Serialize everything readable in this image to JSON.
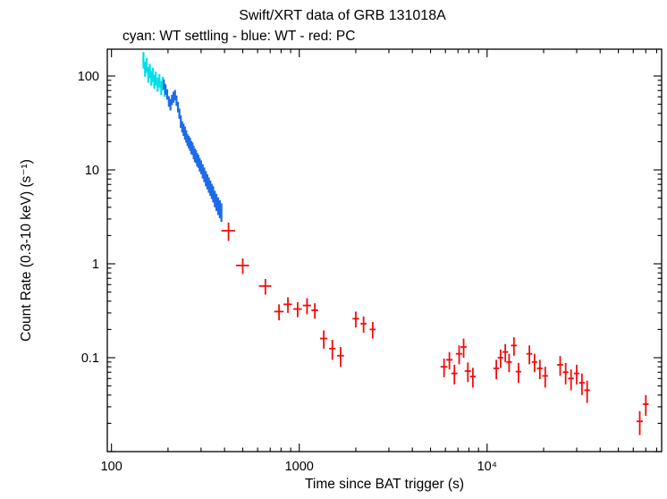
{
  "page": {
    "background": "#ffffff"
  },
  "chart_data": {
    "type": "scatter",
    "title": "Swift/XRT data of GRB 131018A",
    "subtitle": "cyan: WT settling - blue: WT - red: PC",
    "xlabel": "Time since BAT trigger (s)",
    "ylabel": "Count Rate (0.3-10 keV) (s⁻¹)",
    "xscale": "log",
    "yscale": "log",
    "xlim": [
      95,
      85000
    ],
    "ylim": [
      0.01,
      193
    ],
    "grid": false,
    "frame": true,
    "x_ticks": [
      {
        "value": 100,
        "label": "100"
      },
      {
        "value": 1000,
        "label": "1000"
      },
      {
        "value": 10000,
        "label": "10⁴"
      }
    ],
    "y_ticks": [
      {
        "value": 0.1,
        "label": "0.1"
      },
      {
        "value": 1,
        "label": "1"
      },
      {
        "value": 10,
        "label": "10"
      },
      {
        "value": 100,
        "label": "100"
      }
    ],
    "series": [
      {
        "name": "WT settling",
        "mode": "error-bars",
        "color": "#00dfe8",
        "stroke_width": 2.2,
        "points": [
          [
            148,
            150,
            2,
            30
          ],
          [
            151,
            120,
            2,
            22
          ],
          [
            154,
            132,
            2,
            24
          ],
          [
            157,
            105,
            2,
            20
          ],
          [
            160,
            115,
            2,
            20
          ],
          [
            163,
            96,
            2,
            17
          ],
          [
            166,
            104,
            2,
            18
          ],
          [
            169,
            88,
            2,
            15
          ],
          [
            172,
            95,
            2,
            16
          ],
          [
            176,
            82,
            2,
            14
          ],
          [
            180,
            90,
            2,
            15
          ],
          [
            184,
            76,
            2,
            13
          ],
          [
            188,
            84,
            2,
            14
          ],
          [
            192,
            72,
            2,
            12
          ]
        ]
      },
      {
        "name": "WT",
        "mode": "error-bars",
        "color": "#1e6be8",
        "stroke_width": 2.2,
        "points": [
          [
            190,
            82,
            2,
            10
          ],
          [
            194,
            72,
            2,
            9
          ],
          [
            198,
            64,
            2,
            8
          ],
          [
            202,
            54,
            2,
            7
          ],
          [
            206,
            50,
            2,
            7
          ],
          [
            210,
            56,
            2,
            7
          ],
          [
            214,
            60,
            2,
            8
          ],
          [
            218,
            63,
            2,
            8
          ],
          [
            222,
            55,
            2,
            7
          ],
          [
            226,
            47,
            2,
            6
          ],
          [
            230,
            40,
            2,
            5
          ],
          [
            234,
            33,
            2,
            5
          ],
          [
            238,
            29,
            2,
            4
          ],
          [
            242,
            27,
            2,
            4
          ],
          [
            246,
            25,
            2,
            4
          ],
          [
            250,
            23,
            2,
            3.5
          ],
          [
            254,
            21,
            2,
            3
          ],
          [
            258,
            20,
            2,
            3
          ],
          [
            262,
            19,
            2,
            3
          ],
          [
            266,
            17.5,
            2,
            2.8
          ],
          [
            270,
            17,
            2,
            2.6
          ],
          [
            274,
            15.5,
            2,
            2.5
          ],
          [
            278,
            14.5,
            2,
            2.4
          ],
          [
            282,
            14,
            2,
            2.2
          ],
          [
            286,
            13,
            2,
            2.1
          ],
          [
            290,
            12.5,
            2,
            2
          ],
          [
            295,
            11.5,
            2,
            1.9
          ],
          [
            300,
            10.8,
            2,
            1.8
          ],
          [
            306,
            9.8,
            2,
            1.7
          ],
          [
            312,
            9.0,
            3,
            1.6
          ],
          [
            318,
            8.2,
            3,
            1.5
          ],
          [
            324,
            7.6,
            3,
            1.4
          ],
          [
            330,
            7.0,
            3,
            1.3
          ],
          [
            336,
            6.5,
            3,
            1.2
          ],
          [
            342,
            6.0,
            3,
            1.1
          ],
          [
            348,
            5.6,
            3,
            1.1
          ],
          [
            355,
            5.0,
            3,
            1.0
          ],
          [
            362,
            4.6,
            3,
            0.95
          ],
          [
            370,
            4.2,
            4,
            0.9
          ],
          [
            378,
            3.9,
            4,
            0.85
          ],
          [
            385,
            3.6,
            4,
            0.8
          ]
        ]
      },
      {
        "name": "PC",
        "mode": "error-bars",
        "color": "#f20c0c",
        "stroke_width": 1.8,
        "points": [
          [
            420,
            2.25,
            35,
            0.5
          ],
          [
            500,
            0.96,
            40,
            0.18
          ],
          [
            660,
            0.58,
            50,
            0.11
          ],
          [
            780,
            0.31,
            45,
            0.06
          ],
          [
            870,
            0.37,
            45,
            0.07
          ],
          [
            980,
            0.33,
            50,
            0.06
          ],
          [
            1100,
            0.36,
            55,
            0.07
          ],
          [
            1210,
            0.32,
            50,
            0.06
          ],
          [
            1350,
            0.16,
            60,
            0.035
          ],
          [
            1500,
            0.125,
            60,
            0.03
          ],
          [
            1660,
            0.105,
            70,
            0.025
          ],
          [
            2000,
            0.26,
            80,
            0.05
          ],
          [
            2200,
            0.23,
            80,
            0.045
          ],
          [
            2460,
            0.2,
            90,
            0.04
          ],
          [
            5900,
            0.08,
            250,
            0.018
          ],
          [
            6300,
            0.095,
            250,
            0.02
          ],
          [
            6700,
            0.068,
            250,
            0.016
          ],
          [
            7100,
            0.11,
            280,
            0.025
          ],
          [
            7500,
            0.13,
            280,
            0.03
          ],
          [
            7900,
            0.072,
            300,
            0.017
          ],
          [
            8400,
            0.063,
            300,
            0.015
          ],
          [
            11200,
            0.077,
            400,
            0.018
          ],
          [
            11800,
            0.1,
            400,
            0.022
          ],
          [
            12500,
            0.115,
            450,
            0.025
          ],
          [
            13100,
            0.09,
            450,
            0.02
          ],
          [
            13900,
            0.135,
            500,
            0.03
          ],
          [
            14700,
            0.071,
            500,
            0.017
          ],
          [
            16800,
            0.11,
            600,
            0.025
          ],
          [
            17900,
            0.09,
            600,
            0.02
          ],
          [
            19100,
            0.077,
            650,
            0.018
          ],
          [
            20400,
            0.064,
            700,
            0.016
          ],
          [
            24500,
            0.084,
            900,
            0.02
          ],
          [
            26200,
            0.07,
            900,
            0.018
          ],
          [
            28000,
            0.06,
            1000,
            0.015
          ],
          [
            30000,
            0.068,
            1000,
            0.016
          ],
          [
            32000,
            0.054,
            1100,
            0.014
          ],
          [
            34100,
            0.045,
            1200,
            0.012
          ],
          [
            65000,
            0.021,
            2500,
            0.006
          ],
          [
            70000,
            0.032,
            2500,
            0.008
          ]
        ]
      }
    ]
  }
}
